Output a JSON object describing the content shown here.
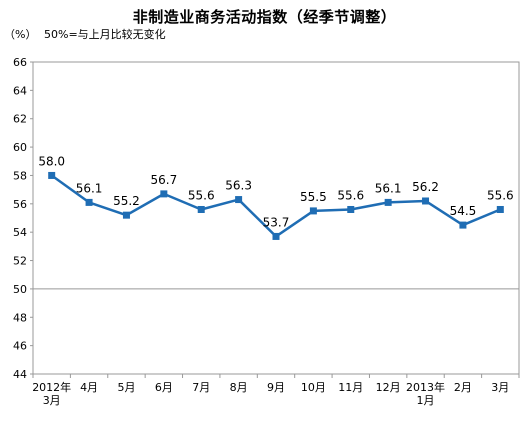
{
  "chart_data": {
    "type": "line",
    "title": "非制造业商务活动指数（经季节调整）",
    "ylabel": "（%）",
    "note": "50%=与上月比较无变化",
    "ylim": [
      44,
      66
    ],
    "yticks": [
      44,
      46,
      48,
      50,
      52,
      54,
      56,
      58,
      60,
      62,
      64,
      66
    ],
    "reference_line": 50,
    "grid": false,
    "colors": {
      "line": "#1f6db4",
      "marker": "#1f6db4",
      "axis": "#999999",
      "reference": "#999999"
    },
    "categories": [
      [
        "2012年",
        "3月"
      ],
      [
        "4月"
      ],
      [
        "5月"
      ],
      [
        "6月"
      ],
      [
        "7月"
      ],
      [
        "8月"
      ],
      [
        "9月"
      ],
      [
        "10月"
      ],
      [
        "11月"
      ],
      [
        "12月"
      ],
      [
        "2013年",
        "1月"
      ],
      [
        "2月"
      ],
      [
        "3月"
      ]
    ],
    "series": [
      {
        "values": [
          58.0,
          56.1,
          55.2,
          56.7,
          55.6,
          56.3,
          53.7,
          55.5,
          55.6,
          56.1,
          56.2,
          54.5,
          55.6
        ],
        "labels": [
          "58.0",
          "56.1",
          "55.2",
          "56.7",
          "55.6",
          "56.3",
          "53.7",
          "55.5",
          "55.6",
          "56.1",
          "56.2",
          "54.5",
          "55.6"
        ]
      }
    ]
  }
}
